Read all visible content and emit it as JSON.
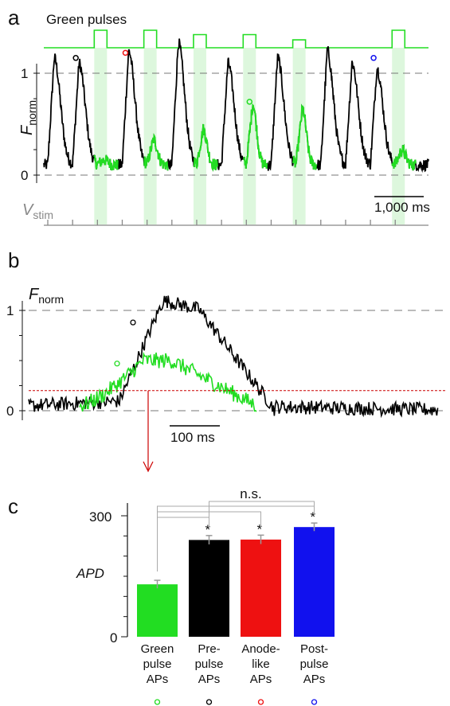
{
  "colors": {
    "green": "#22dd22",
    "black": "#000000",
    "red": "#ee1111",
    "blue": "#1111ee",
    "stim_gray": "#888888",
    "pulse_shade": "#ddf7dd",
    "threshold": "#cc0000"
  },
  "panel_a": {
    "letter": "a",
    "title": "Green pulses",
    "ylabel_main": "F",
    "ylabel_sub": "norm",
    "stim_label_main": "V",
    "stim_label_sub": "stim",
    "y_ticks": [
      "1",
      "0"
    ],
    "scale_bar_label": "1,000 ms",
    "stim_count": 15,
    "pulse_slots": [
      2,
      4,
      6,
      8,
      10,
      14
    ],
    "pulse_amplitudes": [
      1.0,
      1.0,
      0.75,
      0.75,
      0.45,
      1.0
    ],
    "ap_peaks": [
      1.05,
      1.0,
      1.25,
      1.12,
      1.1,
      1.2,
      1.15,
      1.0,
      1.2,
      1.05,
      1.1,
      1.12,
      1.0,
      0.95,
      1.15
    ],
    "green_pulse_ap_peaks": [
      0.05,
      0.25,
      0.35,
      0.6,
      0.55,
      0.15
    ],
    "markers": [
      {
        "beat": 1,
        "color": "black",
        "value": 1.15
      },
      {
        "beat": 3,
        "color": "red",
        "value": 1.2
      },
      {
        "beat": 8,
        "color": "green",
        "value": 0.72
      },
      {
        "beat": 13,
        "color": "blue",
        "value": 1.15
      }
    ]
  },
  "panel_b": {
    "letter": "b",
    "ylabel_main": "F",
    "ylabel_sub": "norm",
    "y_ticks": [
      "1",
      "0"
    ],
    "threshold_level": 0.2,
    "scale_bar_label": "100 ms",
    "black_trace_peak": 1.1,
    "green_trace_peak": 0.5,
    "markers": [
      {
        "color": "black",
        "value": 0.88
      },
      {
        "color": "green",
        "value": 0.47
      }
    ]
  },
  "panel_c": {
    "letter": "c",
    "significance_label": "n.s.",
    "star": "*",
    "chart_data": {
      "type": "bar",
      "ylabel": "APD",
      "ylim": [
        0,
        330
      ],
      "y_ticks": [
        0,
        300
      ],
      "categories": [
        {
          "lines": [
            "Green",
            "pulse",
            "APs"
          ],
          "marker": "green"
        },
        {
          "lines": [
            "Pre-",
            "pulse",
            "APs"
          ],
          "marker": "black"
        },
        {
          "lines": [
            "Anode-",
            "like",
            "APs"
          ],
          "marker": "red"
        },
        {
          "lines": [
            "Post-",
            "pulse",
            "APs"
          ],
          "marker": "blue"
        }
      ],
      "values": [
        130,
        240,
        241,
        272
      ],
      "errors": [
        10,
        11,
        11,
        10
      ],
      "bar_colors": [
        "green",
        "black",
        "red",
        "blue"
      ],
      "significant": [
        false,
        true,
        true,
        true
      ]
    }
  }
}
